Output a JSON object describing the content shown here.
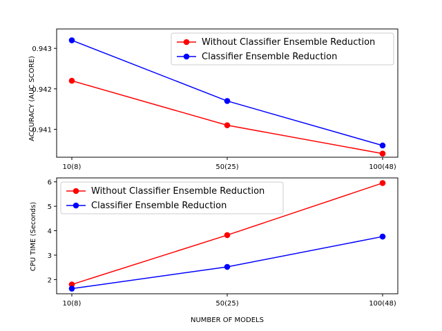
{
  "chart_data": [
    {
      "type": "line",
      "categories": [
        "10(8)",
        "50(25)",
        "100(48)"
      ],
      "series": [
        {
          "name": "Without Classifier Ensemble Reduction",
          "color": "#ff0000",
          "values": [
            0.9422,
            0.9411,
            0.9404
          ]
        },
        {
          "name": "Classifier Ensemble Reduction",
          "color": "#0000ff",
          "values": [
            0.9432,
            0.9417,
            0.9406
          ]
        }
      ],
      "xlabel": "",
      "ylabel": "ACCURACY (AUC SCORE)",
      "ylim": [
        0.94031,
        0.94348
      ],
      "yticks": [
        0.941,
        0.942,
        0.943
      ],
      "ytick_labels": [
        "0.941",
        "0.942",
        "0.943"
      ],
      "legend": "upper-right",
      "grid": false
    },
    {
      "type": "line",
      "categories": [
        "10(8)",
        "50(25)",
        "100(48)"
      ],
      "series": [
        {
          "name": "Without Classifier Ensemble Reduction",
          "color": "#ff0000",
          "values": [
            1.8,
            3.82,
            5.95
          ]
        },
        {
          "name": "Classifier Ensemble Reduction",
          "color": "#0000ff",
          "values": [
            1.63,
            2.52,
            3.76
          ]
        }
      ],
      "xlabel": "NUMBER OF MODELS",
      "ylabel": "CPU TIME (Seconds)",
      "ylim": [
        1.42,
        6.16
      ],
      "yticks": [
        2,
        3,
        4,
        5,
        6
      ],
      "ytick_labels": [
        "2",
        "3",
        "4",
        "5",
        "6"
      ],
      "legend": "upper-left",
      "grid": false
    }
  ]
}
